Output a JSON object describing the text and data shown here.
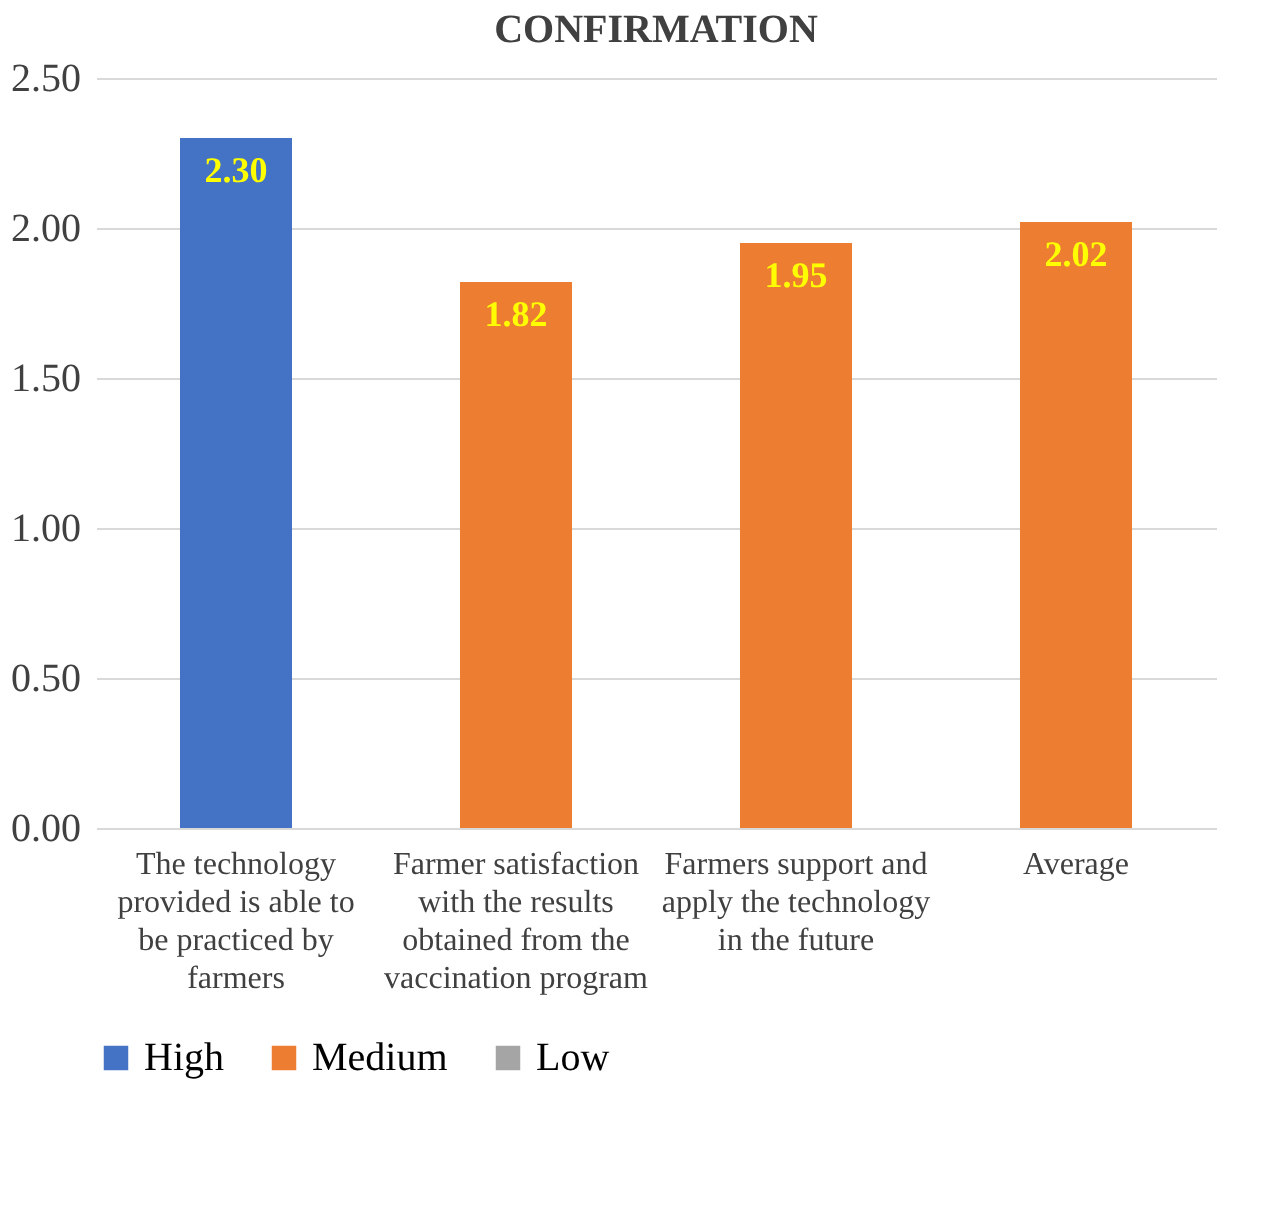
{
  "chart_data": {
    "type": "bar",
    "title": "CONFIRMATION",
    "categories": [
      "The technology provided is able to be practiced by farmers",
      "Farmer satisfaction with the results obtained from the vaccination program",
      "Farmers support and apply the technology in the future",
      "Average"
    ],
    "series": [
      {
        "name": "High",
        "color": "#4472c4",
        "values": [
          2.3,
          null,
          null,
          null
        ],
        "value_labels": [
          "2.30",
          null,
          null,
          null
        ]
      },
      {
        "name": "Medium",
        "color": "#ed7d31",
        "values": [
          null,
          1.82,
          1.95,
          2.02
        ],
        "value_labels": [
          null,
          "1.82",
          "1.95",
          "2.02"
        ]
      },
      {
        "name": "Low",
        "color": "#a5a5a5",
        "values": [
          null,
          null,
          null,
          null
        ],
        "value_labels": [
          null,
          null,
          null,
          null
        ]
      }
    ],
    "data_labels": true,
    "ylim": [
      0,
      2.5
    ],
    "yticks": [
      {
        "value": 0,
        "label": "0.00"
      },
      {
        "value": 0.5,
        "label": "0.50"
      },
      {
        "value": 1,
        "label": "1.00"
      },
      {
        "value": 1.5,
        "label": "1.50"
      },
      {
        "value": 2,
        "label": "2.00"
      },
      {
        "value": 2.5,
        "label": "2.50"
      }
    ],
    "grid": "y",
    "legend": "bottom"
  }
}
